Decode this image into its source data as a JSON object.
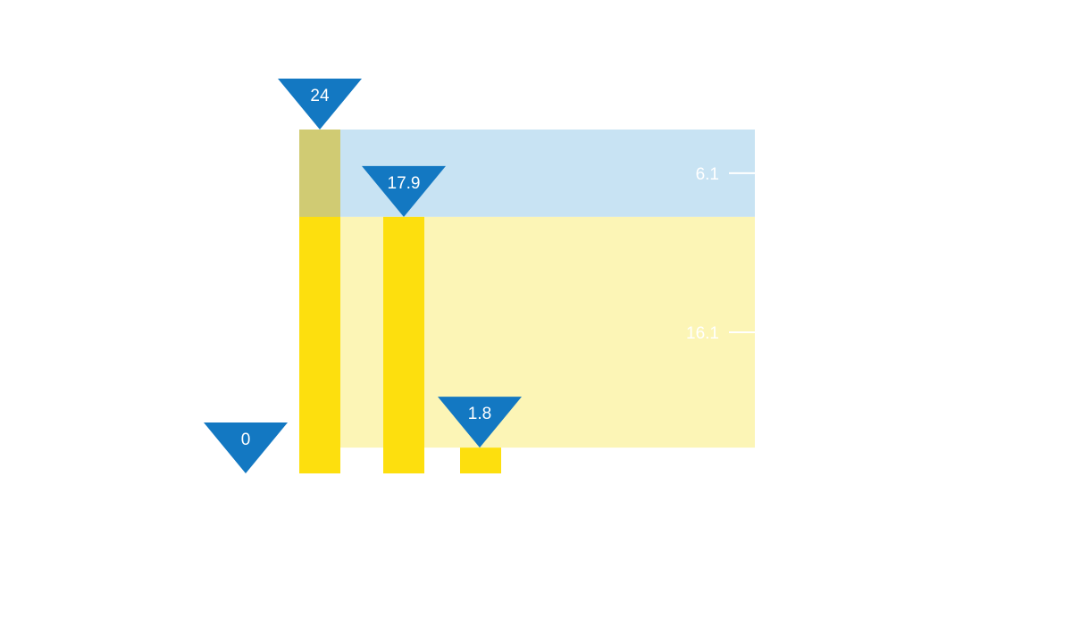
{
  "colors": {
    "bar": "#FDDF0E",
    "bar_overlap": "#D0CB73",
    "band_upper": "#C8E3F3",
    "band_lower": "#FCF5B6",
    "marker": "#1378C2",
    "label": "#FFFFFF"
  },
  "chart_data": {
    "type": "bar",
    "ylim": [
      0,
      24
    ],
    "bars": [
      {
        "value": 24
      },
      {
        "value": 17.9
      },
      {
        "value": 1.8
      }
    ],
    "markers": [
      {
        "label": "0",
        "value": 0
      },
      {
        "label": "24",
        "value": 24
      },
      {
        "label": "17.9",
        "value": 17.9
      },
      {
        "label": "1.8",
        "value": 1.8
      }
    ],
    "bands": [
      {
        "label": "6.1",
        "from": 17.9,
        "to": 24
      },
      {
        "label": "16.1",
        "from": 1.8,
        "to": 17.9
      }
    ]
  }
}
